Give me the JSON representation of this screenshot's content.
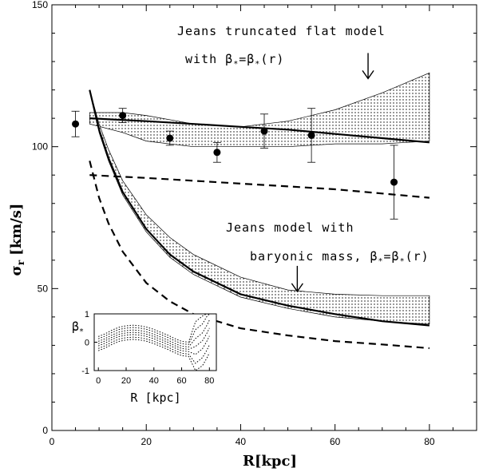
{
  "chart_data": {
    "type": "line",
    "xlabel": "R[kpc]",
    "ylabel_main": "σ",
    "ylabel_sub": "r",
    "ylabel_unit": "[km/s]",
    "xlim": [
      0,
      90
    ],
    "ylim": [
      0,
      150
    ],
    "x_ticks": [
      "0",
      "20",
      "40",
      "60",
      "80"
    ],
    "y_ticks": [
      "0",
      "50",
      "100",
      "150"
    ],
    "x_tick_values": [
      0,
      20,
      40,
      60,
      80
    ],
    "y_tick_values": [
      0,
      50,
      100,
      150
    ],
    "points": [
      {
        "x": 5,
        "y": 108,
        "err": 4.5
      },
      {
        "x": 15,
        "y": 111,
        "err": 2.5
      },
      {
        "x": 25,
        "y": 103,
        "err": 2.5
      },
      {
        "x": 35,
        "y": 98,
        "err": 3.5
      },
      {
        "x": 45,
        "y": 105.5,
        "err": 6
      },
      {
        "x": 55,
        "y": 104,
        "err": 9.5
      },
      {
        "x": 72.5,
        "y": 87.5,
        "err": 13
      }
    ],
    "series": [
      {
        "name": "Jeans truncated flat model (solid)",
        "style": "solid",
        "x": [
          8,
          20,
          30,
          40,
          50,
          60,
          70,
          80
        ],
        "y": [
          110,
          109,
          108,
          107,
          106,
          104.5,
          103,
          101.5
        ]
      },
      {
        "name": "Jeans truncated flat model (dashed)",
        "style": "dashed",
        "x": [
          8,
          20,
          30,
          40,
          50,
          60,
          70,
          80
        ],
        "y": [
          90,
          89,
          88,
          87,
          86,
          85,
          83.5,
          82
        ]
      },
      {
        "name": "Jeans model with baryonic mass (solid)",
        "style": "solid",
        "x": [
          8,
          10,
          12,
          15,
          20,
          25,
          30,
          40,
          50,
          60,
          70,
          80
        ],
        "y": [
          120,
          106,
          96,
          84,
          71,
          62,
          56,
          48,
          44,
          41,
          38.5,
          37
        ]
      },
      {
        "name": "Jeans model with baryonic mass (dashed)",
        "style": "dashed",
        "x": [
          8,
          10,
          12,
          15,
          20,
          25,
          30,
          40,
          50,
          60,
          70,
          80
        ],
        "y": [
          95,
          82,
          73,
          63,
          52,
          45.5,
          41,
          36,
          33.5,
          31.5,
          30.3,
          29
        ]
      }
    ],
    "bands": [
      {
        "name": "truncated flat model band",
        "x": [
          8,
          15,
          20,
          30,
          40,
          50,
          60,
          70,
          80
        ],
        "upper": [
          112,
          112,
          111,
          108,
          107,
          109,
          113,
          119,
          126
        ],
        "lower": [
          108,
          105,
          102,
          100,
          100,
          100,
          101,
          101,
          102
        ]
      },
      {
        "name": "baryonic mass model band",
        "x": [
          8,
          10,
          12,
          15,
          20,
          25,
          30,
          40,
          50,
          60,
          70,
          80
        ],
        "upper": [
          120,
          108,
          99,
          88,
          76,
          68,
          62,
          54,
          49.5,
          48,
          47.5,
          47.5
        ],
        "lower": [
          120,
          105,
          95,
          83,
          70,
          61,
          55,
          47,
          43,
          40,
          38.5,
          37.5
        ]
      }
    ],
    "annotations": [
      {
        "text": "Jeans truncated flat model",
        "arrow_x": 67,
        "arrow_y_from": 133,
        "arrow_y_to": 124
      },
      {
        "text_prefix": "with β",
        "text_eq": "=β",
        "text_suffix": "(r)"
      },
      {
        "text": "Jeans model with"
      },
      {
        "text_prefix": "baryonic mass, β",
        "text_eq": "=β",
        "text_suffix": "(r)",
        "arrow_x": 52,
        "arrow_y_from": 58,
        "arrow_y_to": 49
      }
    ],
    "subscript_star": "*",
    "inset": {
      "type": "line",
      "xlabel": "R [kpc]",
      "ylabel": "β",
      "ylabel_sub": "*",
      "xlim": [
        -3,
        85
      ],
      "ylim": [
        -1,
        1
      ],
      "x_ticks": [
        "0",
        "20",
        "40",
        "60",
        "80"
      ],
      "y_ticks": [
        "1",
        "0",
        "-1"
      ],
      "x_tick_values": [
        0,
        20,
        40,
        60,
        80
      ],
      "y_tick_values": [
        1,
        0,
        -1
      ],
      "x": [
        0,
        5,
        10,
        15,
        20,
        25,
        30,
        35,
        40,
        45,
        50,
        55,
        60,
        65,
        70,
        75,
        78,
        80
      ],
      "offsets": [
        -0.25,
        -0.17,
        -0.08,
        0,
        0.08,
        0.17,
        0.25
      ],
      "center": [
        -0.05,
        0.05,
        0.18,
        0.28,
        0.33,
        0.35,
        0.33,
        0.28,
        0.2,
        0.1,
        0.0,
        -0.12,
        -0.22,
        -0.25,
        -0.15,
        0.05,
        0.3,
        0.5
      ]
    }
  }
}
